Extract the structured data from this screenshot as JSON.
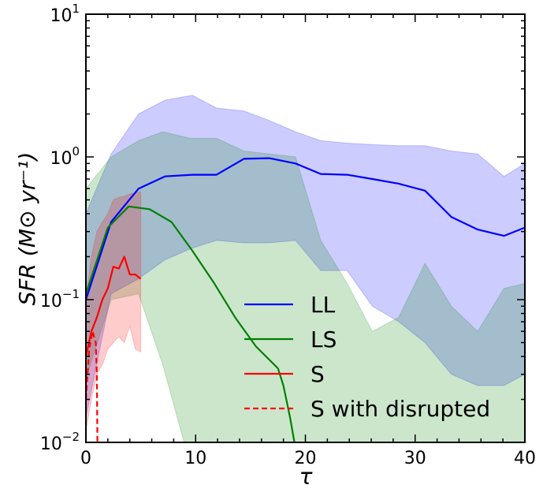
{
  "chart_data": {
    "type": "line",
    "xlabel": "τ",
    "ylabel": "SFR (M⊙ yr⁻¹)",
    "xlim": [
      0,
      40
    ],
    "ylim": [
      0.01,
      10
    ],
    "yscale": "log",
    "x_ticks": [
      "0",
      "10",
      "20",
      "30",
      "40"
    ],
    "y_ticks": [
      {
        "base": "10",
        "exp": "1"
      },
      {
        "base": "10",
        "exp": "0"
      },
      {
        "base": "10",
        "exp": "−1"
      },
      {
        "base": "10",
        "exp": "−2"
      }
    ],
    "legend_position": "lower-right",
    "series": [
      {
        "name": "LL",
        "color": "#0000ff",
        "style": "solid",
        "x": [
          0,
          2.3,
          4.8,
          7.2,
          9.7,
          11.9,
          14.4,
          16.7,
          19.1,
          21.4,
          23.8,
          26.1,
          28.5,
          30.9,
          33.3,
          35.7,
          38.1,
          40
        ],
        "y": [
          0.1,
          0.35,
          0.6,
          0.73,
          0.75,
          0.75,
          0.97,
          0.98,
          0.9,
          0.76,
          0.75,
          0.7,
          0.65,
          0.58,
          0.38,
          0.31,
          0.28,
          0.32
        ],
        "band_x": [
          0,
          2.3,
          4.8,
          7.2,
          9.7,
          11.9,
          14.4,
          16.7,
          19.1,
          21.4,
          23.8,
          26.1,
          28.5,
          30.9,
          33.3,
          35.7,
          38.1,
          40
        ],
        "band_low": [
          0.015,
          0.11,
          0.14,
          0.19,
          0.23,
          0.26,
          0.25,
          0.25,
          0.26,
          0.16,
          0.16,
          0.09,
          0.07,
          0.05,
          0.03,
          0.025,
          0.025,
          0.03
        ],
        "band_high": [
          0.4,
          1.05,
          2.0,
          2.5,
          2.7,
          2.2,
          2.1,
          1.8,
          1.5,
          1.3,
          1.25,
          1.22,
          1.2,
          1.2,
          1.1,
          1.05,
          0.73,
          0.9
        ]
      },
      {
        "name": "LS",
        "color": "#008000",
        "style": "solid",
        "x": [
          0,
          2.0,
          3.9,
          5.8,
          7.8,
          9.7,
          11.7,
          13.6,
          15.5,
          17.5,
          18.0,
          18.6,
          19.0
        ],
        "y": [
          0.11,
          0.32,
          0.45,
          0.43,
          0.35,
          0.22,
          0.13,
          0.075,
          0.047,
          0.033,
          0.025,
          0.015,
          0.01
        ],
        "band_x": [
          0,
          2.3,
          4.8,
          7.0,
          9.5,
          11.9,
          14.4,
          16.7,
          19.1,
          21.4,
          23.8,
          26.1,
          28.5,
          30.9,
          33.3,
          35.7,
          38.1,
          40
        ],
        "band_low": [
          0.028,
          0.1,
          0.11,
          0.035,
          0.007,
          0.005,
          0.005,
          0.005,
          0.005,
          0.005,
          0.005,
          0.005,
          0.005,
          0.005,
          0.005,
          0.005,
          0.005,
          0.005
        ],
        "band_high": [
          0.6,
          1.0,
          1.3,
          1.5,
          1.35,
          1.35,
          1.1,
          1.05,
          1.0,
          0.26,
          0.13,
          0.06,
          0.075,
          0.18,
          0.09,
          0.06,
          0.12,
          0.13
        ]
      },
      {
        "name": "S",
        "color": "#ff0000",
        "style": "solid",
        "x": [
          0,
          0.5,
          1.0,
          1.5,
          2.0,
          2.5,
          3.0,
          3.5,
          4.0,
          4.5,
          5.0
        ],
        "y": [
          0.04,
          0.06,
          0.075,
          0.1,
          0.12,
          0.17,
          0.165,
          0.2,
          0.15,
          0.15,
          0.14
        ],
        "band_x": [
          0,
          0.5,
          1.0,
          1.5,
          2.0,
          2.5,
          3.0,
          3.5,
          4.0,
          4.5,
          5.0
        ],
        "band_low": [
          0.012,
          0.02,
          0.03,
          0.035,
          0.045,
          0.05,
          0.055,
          0.05,
          0.065,
          0.045,
          0.043
        ],
        "band_high": [
          0.1,
          0.2,
          0.3,
          0.35,
          0.4,
          0.5,
          0.52,
          0.53,
          0.55,
          0.56,
          0.57
        ]
      },
      {
        "name": "S with disrupted",
        "color": "#ff0000",
        "style": "dashed",
        "x": [
          0,
          0.3,
          0.6,
          0.9,
          1.0,
          1.05
        ],
        "y": [
          0.02,
          0.045,
          0.06,
          0.05,
          0.03,
          0.01
        ]
      }
    ]
  }
}
